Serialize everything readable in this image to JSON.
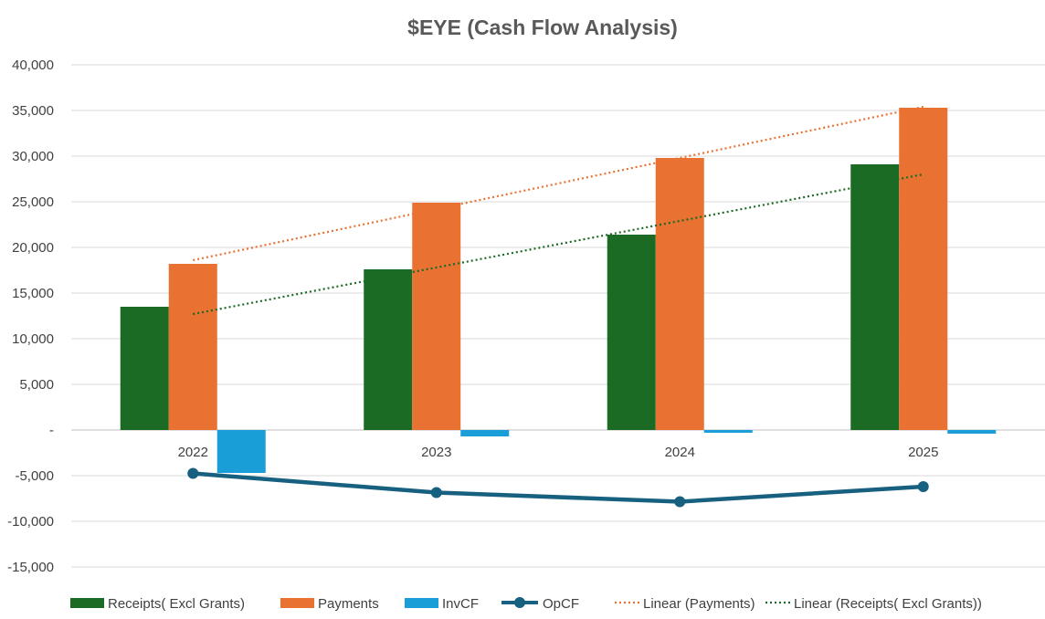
{
  "chart_data": {
    "type": "bar",
    "title": "$EYE (Cash Flow Analysis)",
    "categories": [
      "2022",
      "2023",
      "2024",
      "2025"
    ],
    "ylim": [
      -15000,
      40000
    ],
    "yticks": [
      40000,
      35000,
      30000,
      25000,
      20000,
      15000,
      10000,
      5000,
      0,
      -5000,
      -10000,
      -15000
    ],
    "ytick_labels": [
      "40,000",
      "35,000",
      "30,000",
      "25,000",
      "20,000",
      "15,000",
      "10,000",
      "5,000",
      "-",
      "-5,000",
      "-10,000",
      "-15,000"
    ],
    "grid": true,
    "legend_position": "bottom",
    "bar_series": [
      {
        "name": "Receipts( Excl Grants)",
        "color": "#1b6b24",
        "values": [
          13500,
          17600,
          21400,
          29100
        ]
      },
      {
        "name": "Payments",
        "color": "#e97132",
        "values": [
          18200,
          24900,
          29800,
          35300
        ]
      },
      {
        "name": "InvCF",
        "color": "#1a9ed8",
        "values": [
          -4700,
          -700,
          -300,
          -400
        ]
      }
    ],
    "line_series": [
      {
        "name": "OpCF",
        "color": "#17607f",
        "values": [
          -4750,
          -6850,
          -7850,
          -6200
        ]
      }
    ],
    "trendlines": [
      {
        "name": "Linear (Payments)",
        "color": "#e97132",
        "start": 18600,
        "end": 35400
      },
      {
        "name": "Linear (Receipts( Excl Grants))",
        "color": "#1b6b24",
        "start": 12700,
        "end": 28000
      }
    ]
  }
}
